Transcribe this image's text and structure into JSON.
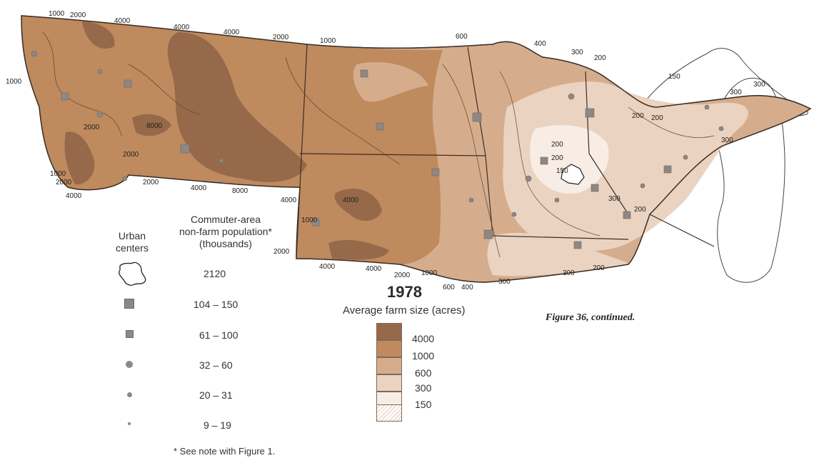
{
  "figure": {
    "year": "1978",
    "subtitle": "Average farm size (acres)",
    "caption": "Figure 36, continued.",
    "note": "* See note with Figure 1."
  },
  "legend_population": {
    "col1": "Urban\ncenters",
    "col2": "Commuter-area\nnon-farm population*\n(thousands)",
    "items": [
      {
        "symbol": "urban-outline",
        "range": "2120"
      },
      {
        "symbol": "large-square",
        "range": "104 – 150"
      },
      {
        "symbol": "medium-square",
        "range": "61 – 100"
      },
      {
        "symbol": "large-dot",
        "range": "32 – 60"
      },
      {
        "symbol": "medium-dot",
        "range": "20 – 31"
      },
      {
        "symbol": "small-dot",
        "range": "9 – 19"
      }
    ]
  },
  "legend_farm_size": {
    "items": [
      {
        "label": "4000",
        "color": "#96694a"
      },
      {
        "label": "1000",
        "color": "#bf8a5e"
      },
      {
        "label": "600",
        "color": "#d6ad8c"
      },
      {
        "label": "300",
        "color": "#ead3c0"
      },
      {
        "label": "150",
        "color": "#f7ede5"
      }
    ]
  },
  "contour_labels": [
    "1000",
    "2000",
    "4000",
    "4000",
    "4000",
    "2000",
    "1000",
    "600",
    "400",
    "300",
    "200",
    "150",
    "300",
    "300",
    "1000",
    "2000",
    "8000",
    "2000",
    "1000",
    "2000",
    "4000",
    "2000",
    "4000",
    "8000",
    "4000",
    "1000",
    "2000",
    "4000",
    "4000",
    "4000",
    "2000",
    "1000",
    "600",
    "400",
    "300",
    "200",
    "200",
    "150",
    "300",
    "200",
    "300",
    "200",
    "300",
    "200",
    "200"
  ],
  "colors": {
    "class_4000": "#96694a",
    "class_1000": "#bf8a5e",
    "class_600": "#d6ad8c",
    "class_300": "#ead3c0",
    "class_150": "#f7ede5",
    "boundary": "#3a2e26"
  }
}
